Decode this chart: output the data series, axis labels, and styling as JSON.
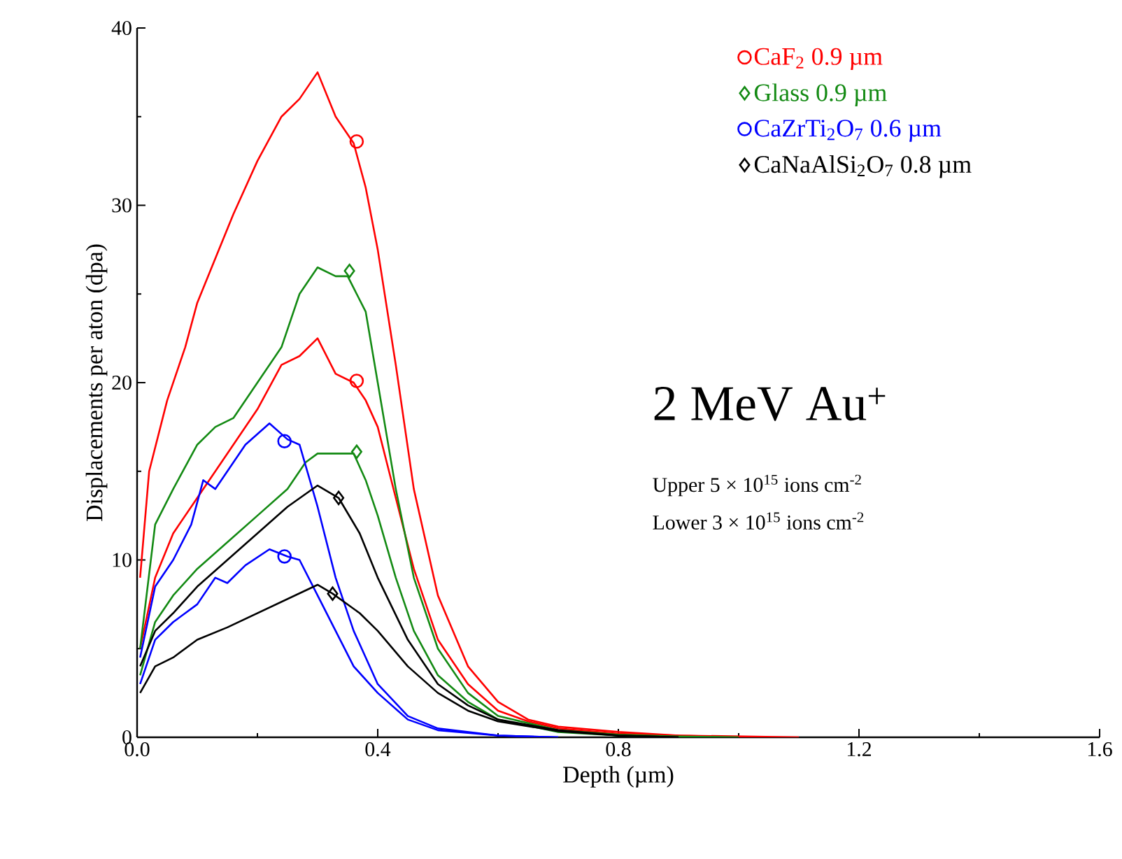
{
  "chart_data": {
    "type": "line",
    "xlabel": "Depth (µm)",
    "ylabel": "Displacements per aton (dpa)",
    "xlim": [
      0,
      1.6
    ],
    "ylim": [
      0,
      40
    ],
    "xticks": [
      {
        "value": 0,
        "label": "0.0"
      },
      0.4,
      0.8,
      1.2,
      1.6
    ],
    "yticks": [
      0,
      10,
      20,
      30,
      40
    ],
    "legend": "top right",
    "grid": false,
    "line_style": "solid",
    "annotations": [
      "2 MeV Au$^{+}$",
      "Upper 5 × 10$^{15}$ ions cm$^{-2}$",
      "Lower 3 × 10$^{15}$ ions cm$^{-2}$"
    ],
    "series": [
      {
        "color": "#ff0000",
        "x": [
          0.005,
          0.02,
          0.05,
          0.08,
          0.1,
          0.13,
          0.16,
          0.2,
          0.24,
          0.27,
          0.3,
          0.33,
          0.36,
          0.38,
          0.4,
          0.43,
          0.46,
          0.5,
          0.55,
          0.6,
          0.65,
          0.7,
          0.8,
          0.9,
          1.0,
          1.1
        ],
        "values": [
          9,
          15,
          19,
          22,
          24.5,
          27,
          29.5,
          32.5,
          35,
          36,
          37.5,
          35,
          33.5,
          31,
          27.5,
          21,
          14,
          8,
          4,
          2,
          1,
          0.6,
          0.3,
          0.1,
          0.05,
          0
        ]
      },
      {
        "color": "#ff0000",
        "x": [
          0.005,
          0.03,
          0.06,
          0.1,
          0.13,
          0.16,
          0.2,
          0.24,
          0.27,
          0.3,
          0.33,
          0.36,
          0.38,
          0.4,
          0.43,
          0.46,
          0.5,
          0.55,
          0.6,
          0.65,
          0.7,
          0.8,
          0.9,
          1.0
        ],
        "values": [
          5,
          9,
          11.5,
          13.5,
          15,
          16.5,
          18.5,
          21,
          21.5,
          22.5,
          20.5,
          20,
          19,
          17.5,
          13.5,
          9.5,
          5.5,
          3,
          1.5,
          0.9,
          0.5,
          0.2,
          0.1,
          0
        ]
      },
      {
        "color": "#138a13",
        "x": [
          0.005,
          0.03,
          0.06,
          0.1,
          0.13,
          0.16,
          0.2,
          0.24,
          0.27,
          0.3,
          0.33,
          0.35,
          0.38,
          0.4,
          0.43,
          0.46,
          0.5,
          0.55,
          0.6,
          0.7,
          0.8,
          0.9,
          1.0
        ],
        "values": [
          5,
          12,
          14,
          16.5,
          17.5,
          18,
          20,
          22,
          25,
          26.5,
          26,
          26,
          24,
          20,
          14,
          9,
          5,
          2.5,
          1.2,
          0.4,
          0.15,
          0.05,
          0
        ]
      },
      {
        "color": "#138a13",
        "x": [
          0.005,
          0.03,
          0.06,
          0.1,
          0.15,
          0.2,
          0.25,
          0.28,
          0.3,
          0.33,
          0.36,
          0.38,
          0.4,
          0.43,
          0.46,
          0.5,
          0.55,
          0.6,
          0.7,
          0.8,
          0.9
        ],
        "values": [
          3.5,
          6.5,
          8,
          9.5,
          11,
          12.5,
          14,
          15.5,
          16,
          16,
          16,
          14.5,
          12.5,
          9,
          6,
          3.5,
          2,
          1,
          0.3,
          0.1,
          0
        ]
      },
      {
        "color": "#0000ff",
        "x": [
          0.005,
          0.03,
          0.06,
          0.09,
          0.11,
          0.13,
          0.15,
          0.18,
          0.22,
          0.25,
          0.27,
          0.3,
          0.33,
          0.36,
          0.4,
          0.45,
          0.5,
          0.6,
          0.7
        ],
        "values": [
          4.5,
          8.5,
          10,
          12,
          14.5,
          14,
          15,
          16.5,
          17.7,
          16.8,
          16.5,
          13,
          9,
          6,
          3,
          1.2,
          0.5,
          0.1,
          0
        ]
      },
      {
        "color": "#0000ff",
        "x": [
          0.005,
          0.03,
          0.06,
          0.1,
          0.13,
          0.15,
          0.18,
          0.22,
          0.25,
          0.27,
          0.3,
          0.33,
          0.36,
          0.4,
          0.45,
          0.5,
          0.6,
          0.7
        ],
        "values": [
          3,
          5.5,
          6.5,
          7.5,
          9,
          8.7,
          9.7,
          10.6,
          10.2,
          10,
          8,
          6,
          4,
          2.5,
          1,
          0.4,
          0.1,
          0
        ]
      },
      {
        "color": "#000000",
        "x": [
          0.005,
          0.03,
          0.06,
          0.1,
          0.15,
          0.2,
          0.25,
          0.3,
          0.335,
          0.37,
          0.4,
          0.45,
          0.5,
          0.55,
          0.6,
          0.7,
          0.8,
          0.9
        ],
        "values": [
          4,
          6,
          7,
          8.5,
          10,
          11.5,
          13,
          14.2,
          13.5,
          11.5,
          9,
          5.5,
          3,
          1.8,
          1,
          0.4,
          0.1,
          0
        ]
      },
      {
        "color": "#000000",
        "x": [
          0.005,
          0.03,
          0.06,
          0.1,
          0.15,
          0.2,
          0.25,
          0.3,
          0.325,
          0.37,
          0.4,
          0.45,
          0.5,
          0.55,
          0.6,
          0.7,
          0.8,
          0.9
        ],
        "values": [
          2.5,
          4,
          4.5,
          5.5,
          6.2,
          7,
          7.8,
          8.6,
          8.1,
          7,
          6,
          4,
          2.5,
          1.5,
          0.9,
          0.35,
          0.1,
          0
        ]
      },
      {
        "type": "scatter",
        "name": "CaF$_{2}$ 0.9 µm",
        "color": "#ff0000",
        "marker": "circle",
        "x": [
          0.365,
          0.365
        ],
        "values": [
          33.6,
          20.1
        ]
      },
      {
        "type": "scatter",
        "name": "Glass 0.9 µm",
        "color": "#138a13",
        "marker": "diamond",
        "x": [
          0.353,
          0.365
        ],
        "values": [
          26.3,
          16.1
        ]
      },
      {
        "type": "scatter",
        "name": "CaZrTi$_{2}$O$_{7}$ 0.6 µm",
        "color": "#0000ff",
        "marker": "circle",
        "x": [
          0.245,
          0.245
        ],
        "values": [
          16.7,
          10.2
        ]
      },
      {
        "type": "scatter",
        "name": "CaNaAlSi$_{2}$O$_{7}$ 0.8 µm",
        "color": "#000000",
        "marker": "diamond",
        "x": [
          0.335,
          0.325
        ],
        "values": [
          13.5,
          8.1
        ]
      }
    ]
  }
}
